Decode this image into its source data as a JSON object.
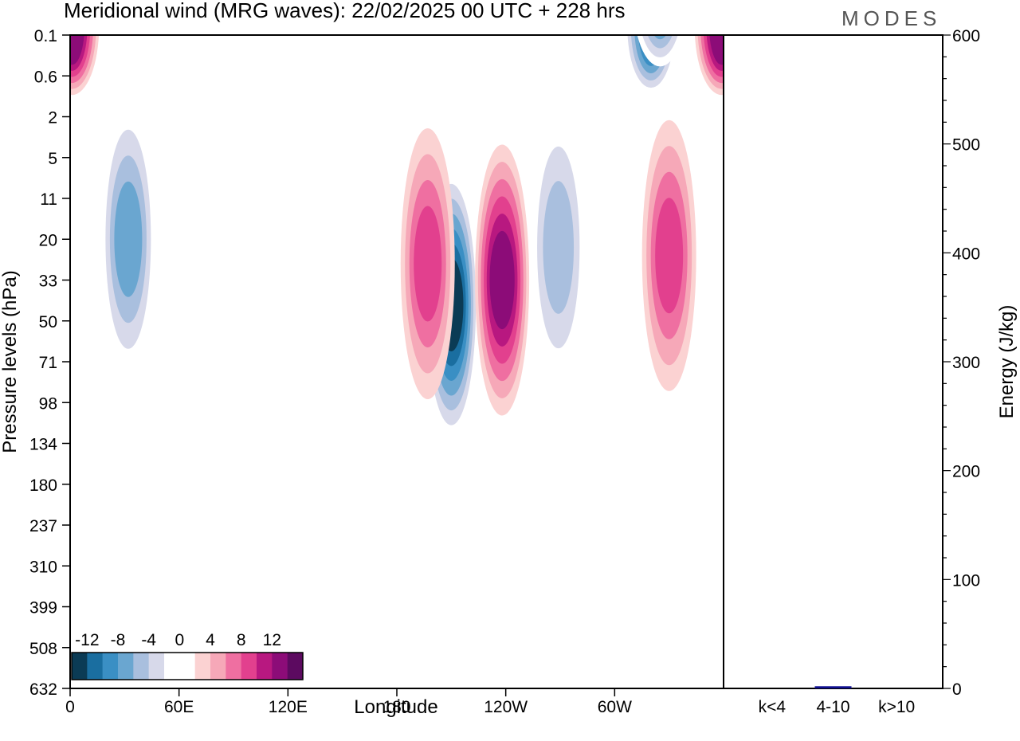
{
  "header": {
    "title": "Meridional wind (MRG waves):  22/02/2025  00 UTC  + 228 hrs",
    "logo": "MODES"
  },
  "chart_data": [
    {
      "type": "heatmap",
      "xlabel": "Longitude",
      "ylabel": "Pressure levels (hPa)",
      "x_ticks": [
        "0",
        "60E",
        "120E",
        "180",
        "120W",
        "60W"
      ],
      "x_tick_values": [
        0,
        60,
        120,
        180,
        240,
        300
      ],
      "xlim": [
        0,
        360
      ],
      "y_ticks": [
        "0.1",
        "0.6",
        "2",
        "5",
        "11",
        "20",
        "33",
        "50",
        "71",
        "98",
        "134",
        "180",
        "237",
        "310",
        "399",
        "508",
        "632"
      ],
      "colorbar": {
        "labels": [
          "-12",
          "-8",
          "-4",
          "0",
          "4",
          "8",
          "12"
        ],
        "colors": [
          "#0b3b55",
          "#1a6ea0",
          "#3a8fc4",
          "#6aa6d0",
          "#a9bfde",
          "#d7d9ea",
          "#ffffff",
          "#ffffff",
          "#fbd2d2",
          "#f6a8b8",
          "#ef6fa1",
          "#e2408e",
          "#b81880",
          "#8c0c78",
          "#5c0a60"
        ]
      },
      "features": [
        {
          "lon": 210,
          "level": 6.6,
          "value": -14
        },
        {
          "lon": 238,
          "level": 6.0,
          "value": 12
        },
        {
          "lon": 197,
          "level": 5.6,
          "value": 9
        },
        {
          "lon": 330,
          "level": 5.4,
          "value": 8
        },
        {
          "lon": 32,
          "level": 5.0,
          "value": -8
        },
        {
          "lon": 269,
          "level": 5.2,
          "value": -6
        },
        {
          "lon": 1,
          "level": -0.2,
          "value": 12
        },
        {
          "lon": 359,
          "level": -0.2,
          "value": 12
        },
        {
          "lon": 320,
          "level": -0.2,
          "value": -10
        },
        {
          "lon": 325,
          "level": -0.9,
          "value": -8
        }
      ]
    },
    {
      "type": "bar",
      "ylabel": "Energy (J/kg)",
      "ylim": [
        0,
        600
      ],
      "y_ticks": [
        "0",
        "100",
        "200",
        "300",
        "400",
        "500",
        "600"
      ],
      "categories": [
        "k<4",
        "4-10",
        "k>10"
      ],
      "values": [
        0,
        2,
        0
      ],
      "bar_color": "#101090"
    }
  ]
}
